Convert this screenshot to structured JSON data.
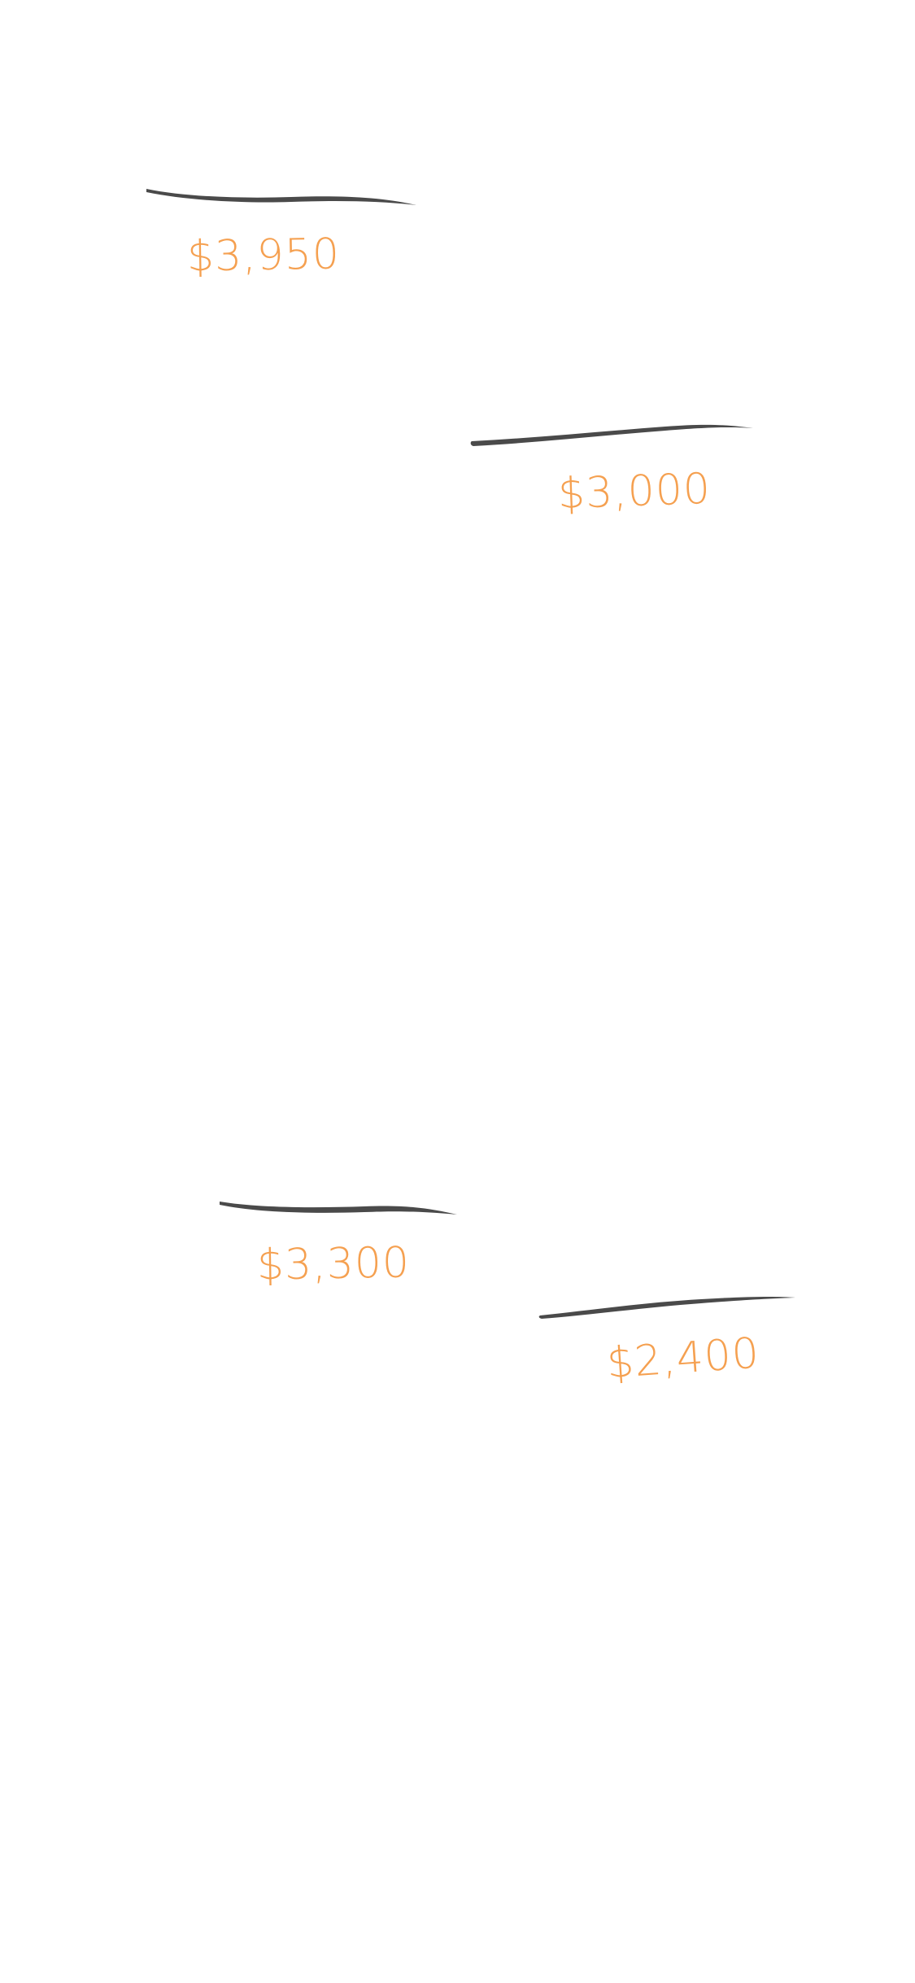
{
  "accent_color": "#f5a050",
  "stroke_color": "#4a4a4a",
  "annotations": [
    {
      "price": "$3,950"
    },
    {
      "price": "$3,000"
    },
    {
      "price": "$3,300"
    },
    {
      "price": "$2,400"
    }
  ]
}
